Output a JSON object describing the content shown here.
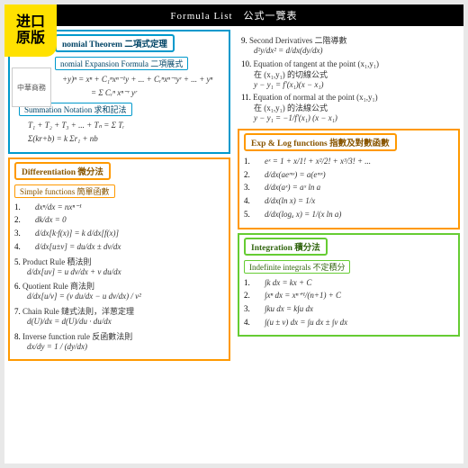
{
  "header": "Formula List　公式一覽表",
  "stamp": {
    "l1": "进口",
    "l2": "原版"
  },
  "logo": "中華商務",
  "colors": {
    "blue": "#0099cc",
    "orange": "#ff9900",
    "green": "#66cc33",
    "bg": "#ffffff",
    "stamp_bg": "#ffe100"
  },
  "left": {
    "blue": {
      "title": "nomial Theorem 二項式定理",
      "sub1": "nomial Expansion Formula 二項展式",
      "f1": "+y)ⁿ = xⁿ + C₁ⁿxⁿ⁻¹y + ... + Cᵣⁿxⁿ⁻ʳyʳ + ... + yⁿ",
      "f1b": "= Σ Cᵣⁿ xⁿ⁻ʳ yʳ",
      "sub2": "Summation Notation 求和記法",
      "f2": "T₁ + T₂ + T₃ + ... + Tₙ = Σ Tᵣ",
      "f3": "Σ(kr+b) = k Σr₁ + nb"
    },
    "orange": {
      "title": "Differentiation 微分法",
      "sub1": "Simple functions 簡單函數",
      "items": [
        {
          "n": "1.",
          "f": "dxⁿ/dx = nxⁿ⁻¹"
        },
        {
          "n": "2.",
          "f": "dk/dx = 0"
        },
        {
          "n": "3.",
          "f": "d/dx[k·f(x)] = k d/dx[f(x)]"
        },
        {
          "n": "4.",
          "f": "d/dx[u±v] = du/dx ± dv/dx"
        },
        {
          "n": "5.",
          "label": "Product Rule 積法則",
          "f": "d/dx[uv] = u dv/dx + v du/dx"
        },
        {
          "n": "6.",
          "label": "Quotient Rule 商法則",
          "f": "d/dx[u/v] = (v du/dx − u dv/dx) / v²"
        },
        {
          "n": "7.",
          "label": "Chain Rule 鏈式法則，洋葱定理",
          "f": "d(U)/dx = d(U)/du · du/dx"
        },
        {
          "n": "8.",
          "label": "Inverse function rule 反函數法則",
          "f": "dx/dy = 1 / (dy/dx)"
        }
      ]
    }
  },
  "right": {
    "top": [
      {
        "n": "9.",
        "label": "Second Derivatives 二階導數",
        "f": "d²y/dx² = d/dx(dy/dx)"
      },
      {
        "n": "10.",
        "label": "Equation of tangent at the point (x₁,y₁)",
        "sub": "在 (x₁,y₁) 的切線公式",
        "f": "y − y₁ = f'(x₁)(x − x₁)"
      },
      {
        "n": "11.",
        "label": "Equation of normal at the point (x₁,y₁)",
        "sub": "在 (x₁,y₁) 的法線公式",
        "f": "y − y₁ = −1/f'(x₁) (x − x₁)"
      }
    ],
    "orange": {
      "title": "Exp & Log functions 指數及對數函數",
      "items": [
        {
          "n": "1.",
          "f": "eˣ = 1 + x/1! + x²/2! + x³/3! + ..."
        },
        {
          "n": "2.",
          "f": "d/dx(aeᵐˣ) = a(eᵐˣ)"
        },
        {
          "n": "3.",
          "f": "d/dx(aˣ) = aˣ ln a"
        },
        {
          "n": "4.",
          "f": "d/dx(ln x) = 1/x"
        },
        {
          "n": "5.",
          "f": "d/dx(logₐ x) = 1/(x ln a)"
        }
      ]
    },
    "green": {
      "title": "Integration 積分法",
      "sub1": "Indefinite integrals 不定積分",
      "items": [
        {
          "n": "1.",
          "f": "∫k dx = kx + C"
        },
        {
          "n": "2.",
          "f": "∫xⁿ dx = xⁿ⁺¹/(n+1) + C"
        },
        {
          "n": "3.",
          "f": "∫ku dx = k∫u dx"
        },
        {
          "n": "4.",
          "f": "∫(u ± v) dx = ∫u dx ± ∫v dx"
        }
      ]
    }
  }
}
